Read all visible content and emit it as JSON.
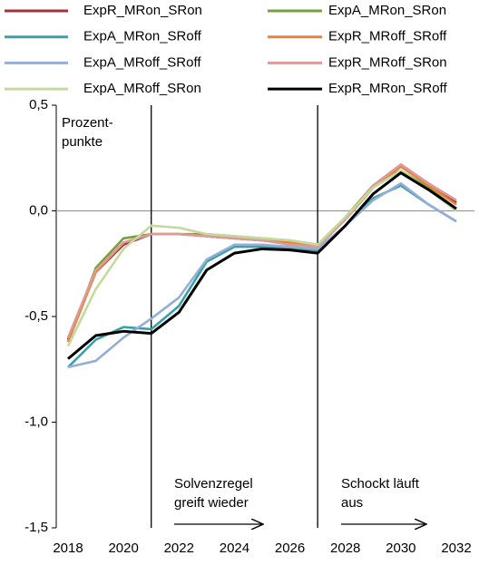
{
  "chart_data": {
    "type": "line",
    "annotations": [
      [
        "Prozent-",
        "punkte"
      ],
      [
        "Solvenzregel",
        "greift wieder"
      ],
      [
        "Schockt läuft",
        "aus"
      ]
    ],
    "x": [
      2018,
      2019,
      2020,
      2021,
      2022,
      2023,
      2024,
      2025,
      2026,
      2027,
      2028,
      2029,
      2030,
      2031,
      2032
    ],
    "xlim": [
      2018,
      2032
    ],
    "xticks": [
      2018,
      2020,
      2022,
      2024,
      2026,
      2028,
      2030,
      2032
    ],
    "ylim": [
      -1.5,
      0.5
    ],
    "yticks": [
      {
        "value": -1.5,
        "label": "-1,5"
      },
      {
        "value": -1.0,
        "label": "-1,0"
      },
      {
        "value": -0.5,
        "label": "-0,5"
      },
      {
        "value": 0,
        "label": "0,0"
      },
      {
        "value": 0.5,
        "label": "0,5"
      }
    ],
    "vlines": [
      2021,
      2027
    ],
    "series": [
      {
        "name": "ExpR_MRon_SRon",
        "color": "#a3303a",
        "values": [
          -0.61,
          -0.29,
          -0.16,
          -0.11,
          -0.11,
          -0.12,
          -0.13,
          -0.14,
          -0.15,
          -0.17,
          -0.04,
          0.11,
          0.21,
          0.13,
          0.04
        ]
      },
      {
        "name": "ExpA_MRon_SRon",
        "color": "#77a03c",
        "values": [
          -0.62,
          -0.27,
          -0.13,
          -0.11,
          -0.11,
          -0.11,
          -0.12,
          -0.13,
          -0.14,
          -0.16,
          -0.03,
          0.12,
          0.19,
          0.11,
          0.01
        ]
      },
      {
        "name": "ExpA_MRon_SRoff",
        "color": "#3aa0a8",
        "values": [
          -0.74,
          -0.61,
          -0.55,
          -0.56,
          -0.45,
          -0.24,
          -0.17,
          -0.17,
          -0.18,
          -0.19,
          -0.07,
          0.06,
          0.12,
          0.03,
          -0.05
        ]
      },
      {
        "name": "ExpR_MRoff_SRoff",
        "color": "#e8843a",
        "values": [
          -0.62,
          -0.29,
          -0.15,
          -0.11,
          -0.11,
          -0.12,
          -0.13,
          -0.14,
          -0.15,
          -0.17,
          -0.04,
          0.11,
          0.21,
          0.12,
          0.03
        ]
      },
      {
        "name": "ExpA_MRoff_SRoff",
        "color": "#94aed6",
        "values": [
          -0.74,
          -0.71,
          -0.6,
          -0.51,
          -0.41,
          -0.23,
          -0.16,
          -0.16,
          -0.17,
          -0.18,
          -0.07,
          0.05,
          0.13,
          0.03,
          -0.05
        ]
      },
      {
        "name": "ExpR_MRoff_SRon",
        "color": "#dc9a98",
        "values": [
          -0.6,
          -0.28,
          -0.15,
          -0.11,
          -0.11,
          -0.12,
          -0.13,
          -0.14,
          -0.16,
          -0.17,
          -0.04,
          0.12,
          0.22,
          0.13,
          0.05
        ]
      },
      {
        "name": "ExpA_MRoff_SRon",
        "color": "#c3da9c",
        "values": [
          -0.64,
          -0.37,
          -0.18,
          -0.07,
          -0.08,
          -0.11,
          -0.12,
          -0.13,
          -0.14,
          -0.16,
          -0.03,
          0.11,
          0.19,
          0.1,
          0.0
        ]
      },
      {
        "name": "ExpR_MRon_SRoff",
        "color": "#000000",
        "values": [
          -0.7,
          -0.59,
          -0.57,
          -0.58,
          -0.48,
          -0.28,
          -0.2,
          -0.18,
          -0.185,
          -0.2,
          -0.07,
          0.08,
          0.18,
          0.1,
          0.01
        ]
      }
    ]
  }
}
